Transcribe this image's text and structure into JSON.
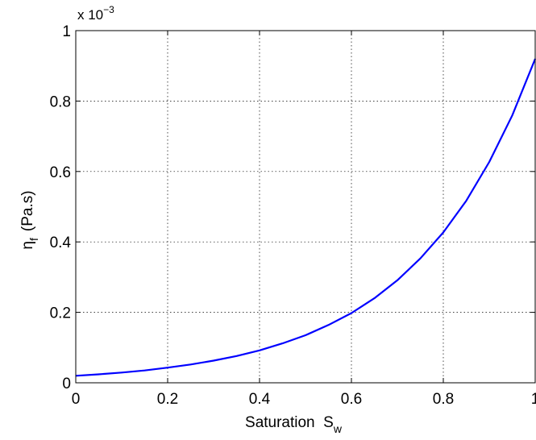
{
  "chart_data": {
    "type": "line",
    "xlabel": "Saturation  S",
    "xlabel_subscript": "w",
    "ylabel": "η",
    "ylabel_subscript": "f",
    "ylabel_units": "(Pa.s)",
    "multiplier_base": "x 10",
    "multiplier_exponent": "−3",
    "xlim": [
      0,
      1
    ],
    "ylim": [
      0,
      1
    ],
    "x_ticks": [
      0,
      0.2,
      0.4,
      0.6,
      0.8,
      1
    ],
    "y_ticks": [
      0,
      0.2,
      0.4,
      0.6,
      0.8,
      1
    ],
    "x_tick_labels": [
      "0",
      "0.2",
      "0.4",
      "0.6",
      "0.8",
      "1"
    ],
    "y_tick_labels": [
      "0",
      "0.2",
      "0.4",
      "0.6",
      "0.8",
      "1"
    ],
    "grid": true,
    "series": [
      {
        "color": "#0000ff",
        "x": [
          0,
          0.05,
          0.1,
          0.15,
          0.2,
          0.25,
          0.3,
          0.35,
          0.4,
          0.45,
          0.5,
          0.55,
          0.6,
          0.65,
          0.7,
          0.75,
          0.8,
          0.85,
          0.9,
          0.95,
          1
        ],
        "y": [
          0.02,
          0.024,
          0.029,
          0.035,
          0.043,
          0.052,
          0.063,
          0.076,
          0.092,
          0.112,
          0.135,
          0.164,
          0.198,
          0.24,
          0.291,
          0.353,
          0.427,
          0.517,
          0.627,
          0.759,
          0.92
        ]
      }
    ]
  }
}
